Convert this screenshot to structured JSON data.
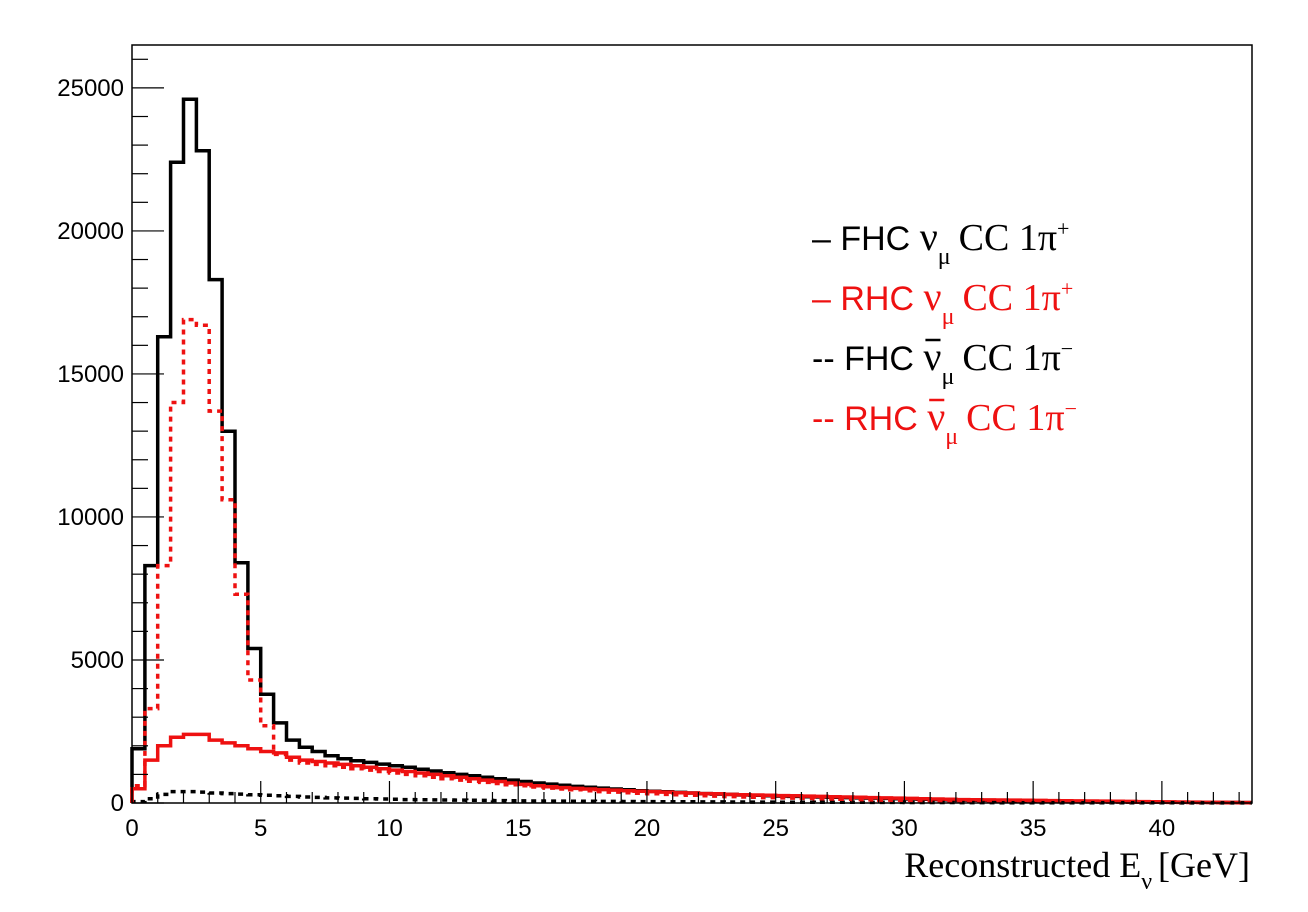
{
  "chart_data": {
    "type": "line",
    "render_style": "step-histogram",
    "xlabel": {
      "main": "Reconstructed E",
      "subscript": "ν",
      "unit": "[GeV]"
    },
    "ylabel": "",
    "xlim": [
      0,
      43.5
    ],
    "ylim": [
      0,
      26500
    ],
    "x_ticks": [
      0,
      5,
      10,
      15,
      20,
      25,
      30,
      35,
      40
    ],
    "y_ticks": [
      0,
      5000,
      10000,
      15000,
      20000,
      25000
    ],
    "grid": false,
    "legend_position": "top-right",
    "bin_width": 0.5,
    "bin_edges": [
      0,
      0.5,
      1,
      1.5,
      2,
      2.5,
      3,
      3.5,
      4,
      4.5,
      5,
      5.5,
      6,
      6.5,
      7,
      7.5,
      8,
      8.5,
      9,
      9.5,
      10,
      10.5,
      11,
      11.5,
      12,
      12.5,
      13,
      13.5,
      14,
      14.5,
      15,
      15.5,
      16,
      16.5,
      17,
      17.5,
      18,
      18.5,
      19,
      19.5,
      20,
      20.5,
      21,
      21.5,
      22,
      22.5,
      23,
      23.5,
      24,
      24.5,
      25,
      25.5,
      26,
      26.5,
      27,
      27.5,
      28,
      28.5,
      29,
      29.5,
      30,
      30.5,
      31,
      31.5,
      32,
      32.5,
      33,
      33.5,
      34,
      34.5,
      35,
      35.5,
      36,
      36.5,
      37,
      37.5,
      38,
      38.5,
      39,
      39.5,
      40,
      40.5,
      41,
      41.5,
      42,
      42.5,
      43,
      43.5
    ],
    "series": [
      {
        "key": "fhc_numu",
        "color": "#000000",
        "dash": "solid",
        "legend": {
          "prefix": "–",
          "beam": "FHC",
          "nu_bar": false,
          "flavor": "μ",
          "process": "CC 1",
          "pion_charge": "+"
        },
        "values": [
          1900,
          8300,
          16300,
          22400,
          24600,
          22800,
          18300,
          13000,
          8400,
          5400,
          3800,
          2800,
          2200,
          1950,
          1800,
          1650,
          1550,
          1480,
          1420,
          1360,
          1300,
          1250,
          1180,
          1120,
          1060,
          1000,
          950,
          900,
          850,
          800,
          750,
          700,
          660,
          620,
          580,
          550,
          520,
          490,
          460,
          430,
          410,
          390,
          370,
          350,
          330,
          310,
          300,
          280,
          270,
          250,
          240,
          230,
          220,
          210,
          200,
          190,
          180,
          170,
          160,
          150,
          140,
          130,
          120,
          110,
          100,
          95,
          90,
          85,
          80,
          75,
          70,
          65,
          60,
          55,
          50,
          45,
          42,
          38,
          35,
          32,
          30,
          27,
          25,
          22,
          20,
          18,
          15
        ]
      },
      {
        "key": "rhc_numu",
        "color": "#ee1111",
        "dash": "solid",
        "legend": {
          "prefix": "–",
          "beam": "RHC",
          "nu_bar": false,
          "flavor": "μ",
          "process": "CC 1",
          "pion_charge": "+"
        },
        "values": [
          500,
          1500,
          2000,
          2300,
          2400,
          2400,
          2200,
          2100,
          2000,
          1900,
          1800,
          1750,
          1600,
          1500,
          1450,
          1400,
          1350,
          1300,
          1250,
          1200,
          1150,
          1100,
          1050,
          1000,
          950,
          900,
          850,
          800,
          750,
          700,
          650,
          600,
          570,
          540,
          510,
          490,
          470,
          450,
          430,
          410,
          400,
          380,
          360,
          350,
          330,
          320,
          300,
          290,
          280,
          270,
          260,
          250,
          240,
          230,
          220,
          210,
          200,
          190,
          180,
          170,
          160,
          150,
          140,
          130,
          120,
          115,
          110,
          105,
          100,
          95,
          90,
          85,
          80,
          75,
          70,
          65,
          60,
          55,
          50,
          45,
          40,
          36,
          32,
          28,
          25,
          22,
          18
        ]
      },
      {
        "key": "fhc_numubar",
        "color": "#000000",
        "dash": "dashed",
        "legend": {
          "prefix": "--",
          "beam": "FHC",
          "nu_bar": true,
          "flavor": "μ",
          "process": "CC 1",
          "pion_charge": "−"
        },
        "values": [
          50,
          150,
          300,
          400,
          400,
          380,
          350,
          330,
          310,
          290,
          270,
          250,
          230,
          210,
          195,
          180,
          170,
          160,
          150,
          140,
          130,
          120,
          115,
          110,
          105,
          100,
          95,
          90,
          85,
          80,
          75,
          70,
          68,
          65,
          62,
          60,
          57,
          55,
          52,
          50,
          48,
          46,
          44,
          42,
          40,
          38,
          36,
          34,
          32,
          30,
          29,
          28,
          27,
          26,
          25,
          24,
          23,
          22,
          21,
          20,
          19,
          18,
          17,
          16,
          15,
          14,
          13,
          12,
          12,
          11,
          11,
          10,
          10,
          9,
          9,
          8,
          8,
          7,
          7,
          6,
          6,
          5,
          5,
          5,
          4,
          4,
          4
        ]
      },
      {
        "key": "rhc_numubar",
        "color": "#ee1111",
        "dash": "dashed",
        "legend": {
          "prefix": "--",
          "beam": "RHC",
          "nu_bar": true,
          "flavor": "μ",
          "process": "CC 1",
          "pion_charge": "−"
        },
        "values": [
          600,
          3300,
          8300,
          14000,
          16900,
          16700,
          13700,
          10600,
          7300,
          4300,
          2700,
          1700,
          1500,
          1400,
          1350,
          1300,
          1250,
          1200,
          1150,
          1100,
          1050,
          1000,
          950,
          900,
          850,
          800,
          760,
          720,
          680,
          640,
          600,
          560,
          520,
          490,
          460,
          430,
          400,
          380,
          360,
          340,
          320,
          300,
          285,
          270,
          255,
          240,
          225,
          210,
          200,
          190,
          180,
          170,
          160,
          150,
          140,
          130,
          120,
          110,
          100,
          95,
          90,
          85,
          80,
          75,
          70,
          65,
          60,
          55,
          50,
          48,
          45,
          42,
          40,
          37,
          35,
          32,
          30,
          28,
          26,
          24,
          22,
          20,
          18,
          16,
          14,
          12,
          10
        ]
      }
    ]
  }
}
